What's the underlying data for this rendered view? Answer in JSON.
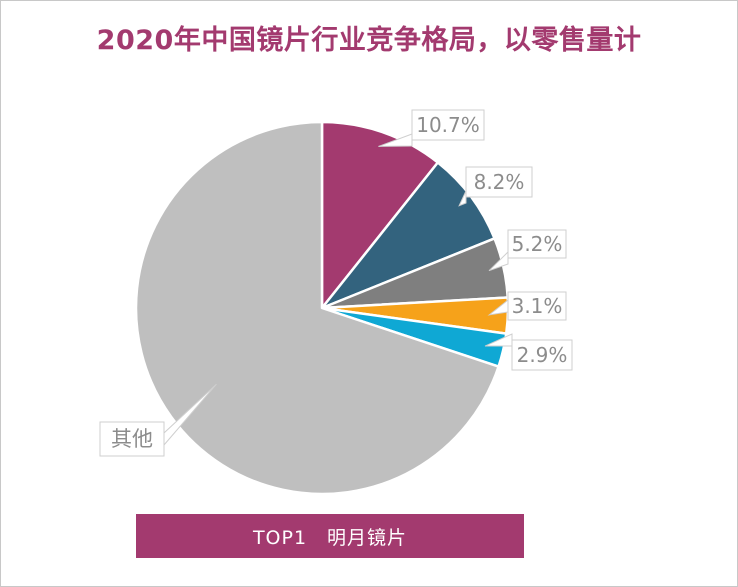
{
  "chart_data": {
    "type": "pie",
    "title": "2020年中国镜片行业竞争格局，以零售量计",
    "slices": [
      {
        "label": "10.7%",
        "value": 10.7,
        "color": "#a33a6f"
      },
      {
        "label": "8.2%",
        "value": 8.2,
        "color": "#33637e"
      },
      {
        "label": "5.2%",
        "value": 5.2,
        "color": "#7f7f7f"
      },
      {
        "label": "3.1%",
        "value": 3.1,
        "color": "#f6a21a"
      },
      {
        "label": "2.9%",
        "value": 2.9,
        "color": "#0fa8d4"
      },
      {
        "label": "其他",
        "value": 69.9,
        "color": "#bfbfbf"
      }
    ],
    "start_angle_deg": 0,
    "direction": "clockwise",
    "legend": "none"
  },
  "banner": {
    "text": "TOP1　明月镜片"
  }
}
